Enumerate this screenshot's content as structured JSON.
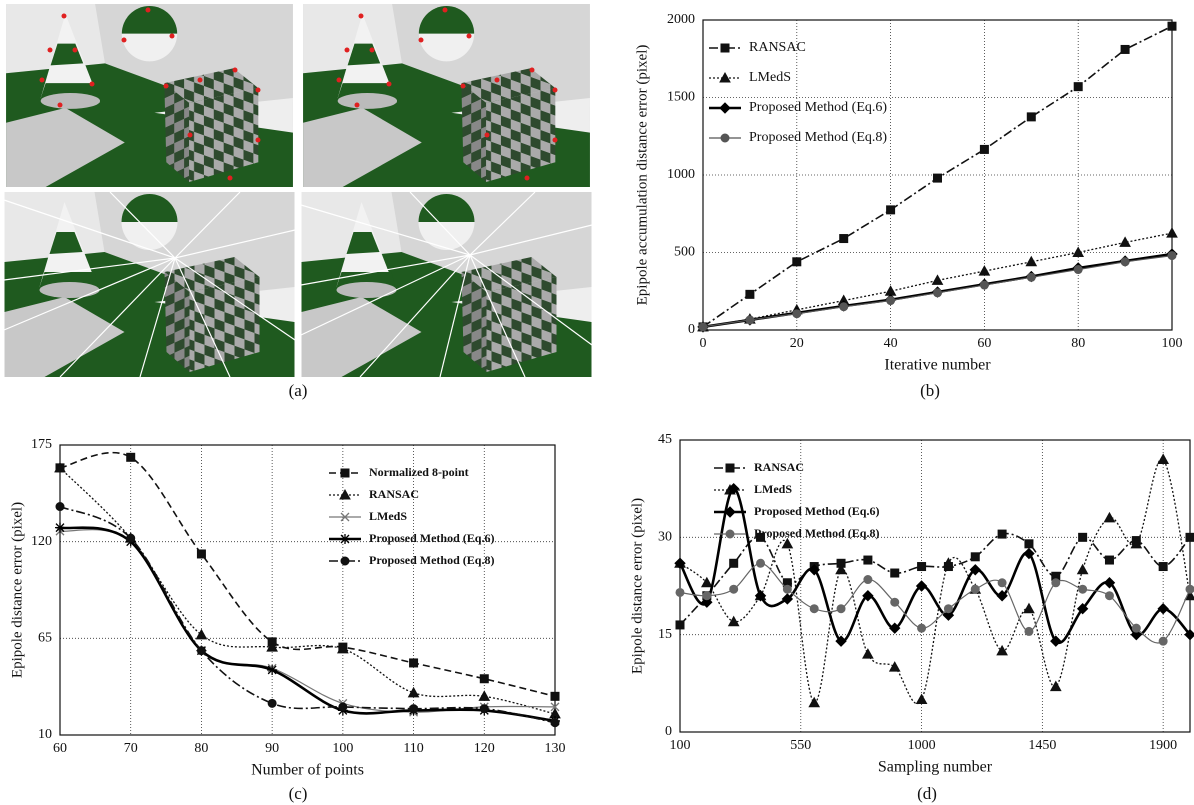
{
  "figure_a": {
    "caption": "(a)"
  },
  "chart_data": [
    {
      "type": "line",
      "caption": "(b)",
      "x_label": "Iterative number",
      "y_label": "Epipole accumulation distance error (pixel)",
      "x": [
        0,
        10,
        20,
        30,
        40,
        50,
        60,
        70,
        80,
        90,
        100
      ],
      "xlim": [
        0,
        100
      ],
      "ylim": [
        0,
        2000
      ],
      "xticks": [
        0,
        20,
        40,
        60,
        80,
        100
      ],
      "yticks": [
        0,
        500,
        1000,
        1500,
        2000
      ],
      "grid": true,
      "legend": "upper left",
      "smooth": false,
      "series": [
        {
          "name": "RANSAC",
          "color": "#111111",
          "style": "dash-dot",
          "marker": "square",
          "values": [
            20,
            230,
            440,
            590,
            775,
            980,
            1165,
            1375,
            1570,
            1810,
            1960
          ]
        },
        {
          "name": "LMedS",
          "color": "#111111",
          "style": "dotted",
          "marker": "triangle",
          "values": [
            20,
            70,
            130,
            190,
            250,
            320,
            380,
            440,
            500,
            565,
            625
          ]
        },
        {
          "name": "Proposed Method (Eq.6)",
          "color": "#000000",
          "style": "thick",
          "marker": "diamond",
          "values": [
            20,
            65,
            110,
            155,
            195,
            245,
            295,
            345,
            400,
            445,
            490
          ]
        },
        {
          "name": "Proposed Method (Eq.8)",
          "color": "#555555",
          "style": "solid",
          "marker": "circle",
          "values": [
            20,
            65,
            105,
            150,
            190,
            240,
            290,
            340,
            390,
            440,
            480
          ]
        }
      ]
    },
    {
      "type": "line",
      "caption": "(c)",
      "x_label": "Number of points",
      "y_label": "Epipole distance error (pixel)",
      "x": [
        60,
        70,
        80,
        90,
        100,
        110,
        120,
        130
      ],
      "xlim": [
        60,
        130
      ],
      "ylim": [
        10,
        175
      ],
      "xticks": [
        60,
        70,
        80,
        90,
        100,
        110,
        120,
        130
      ],
      "yticks": [
        10,
        65,
        120,
        175
      ],
      "grid": true,
      "legend": "upper right",
      "smooth": true,
      "series": [
        {
          "name": "Normalized 8-point",
          "color": "#111111",
          "style": "dashed",
          "marker": "square",
          "values": [
            162,
            168,
            113,
            63,
            60,
            51,
            42,
            32
          ]
        },
        {
          "name": "RANSAC",
          "color": "#111111",
          "style": "dotted",
          "marker": "triangle",
          "values": [
            162,
            122,
            67,
            60,
            59,
            34,
            32,
            22
          ]
        },
        {
          "name": "LMedS",
          "color": "#777777",
          "style": "solid",
          "marker": "x",
          "values": [
            126,
            120,
            58,
            48,
            28,
            23,
            26,
            26
          ]
        },
        {
          "name": "Proposed Method (Eq.6)",
          "color": "#000000",
          "style": "thick",
          "marker": "star",
          "values": [
            128,
            120,
            58,
            47,
            24,
            24,
            24,
            18
          ]
        },
        {
          "name": "Proposed Method (Eq.8)",
          "color": "#111111",
          "style": "dash-dot",
          "marker": "circle",
          "values": [
            140,
            122,
            58,
            28,
            26,
            25,
            25,
            17
          ]
        }
      ]
    },
    {
      "type": "line",
      "caption": "(d)",
      "x_label": "Sampling number",
      "y_label": "Epipole distance error (pixel)",
      "x": [
        100,
        200,
        300,
        400,
        500,
        600,
        700,
        800,
        900,
        1000,
        1100,
        1200,
        1300,
        1400,
        1500,
        1600,
        1700,
        1800,
        1900,
        2000
      ],
      "xlim": [
        100,
        2000
      ],
      "ylim": [
        0,
        45
      ],
      "xticks": [
        100,
        550,
        1000,
        1450,
        1900
      ],
      "yticks": [
        0,
        15,
        30,
        45
      ],
      "grid": true,
      "legend": "upper left",
      "smooth": true,
      "series": [
        {
          "name": "RANSAC",
          "color": "#111111",
          "style": "dash-dot",
          "marker": "square",
          "values": [
            16.5,
            21,
            26,
            30,
            23,
            25.5,
            26,
            26.5,
            24.5,
            25.5,
            25.5,
            27,
            30.5,
            29,
            24,
            30,
            26.5,
            29.5,
            25.5,
            30
          ]
        },
        {
          "name": "LMedS",
          "color": "#111111",
          "style": "dotted",
          "marker": "triangle",
          "values": [
            26,
            23,
            17,
            21,
            29,
            4.5,
            25,
            12,
            10,
            5,
            26,
            22,
            12.5,
            19,
            7,
            25,
            33,
            29,
            42,
            21
          ]
        },
        {
          "name": "Proposed Method (Eq.6)",
          "color": "#000000",
          "style": "thick",
          "marker": "diamond",
          "values": [
            26,
            20,
            37.5,
            21,
            20.5,
            25,
            14,
            21,
            16,
            22.5,
            18,
            25,
            21,
            27.5,
            14,
            19,
            23,
            15,
            19,
            15
          ]
        },
        {
          "name": "Proposed Method (Eq.8)",
          "color": "#666666",
          "style": "solid",
          "marker": "circle",
          "values": [
            21.5,
            21,
            22,
            26,
            22,
            19,
            19,
            23.5,
            20,
            16,
            19,
            22,
            23,
            15.5,
            23,
            22,
            21,
            16,
            14,
            22
          ]
        }
      ]
    }
  ]
}
